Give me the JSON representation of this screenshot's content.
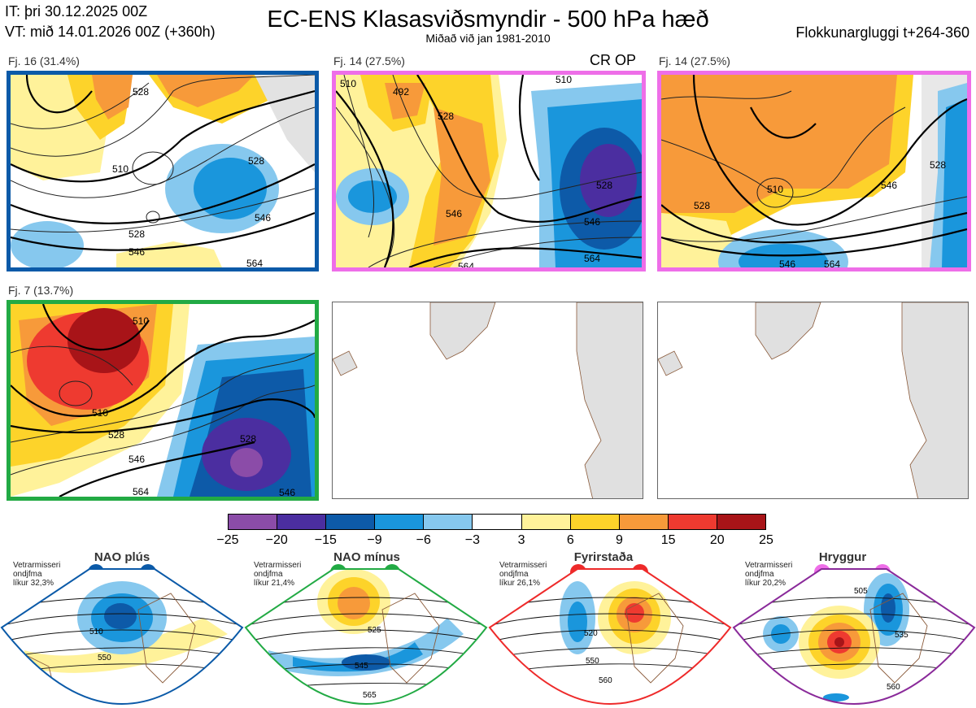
{
  "header": {
    "it": "IT: þri 30.12.2025 00Z",
    "vt": "VT: mið 14.01.2026 00Z  (+360h)",
    "title": "EC-ENS Klasasviðsmyndir - 500 hPa hæð",
    "subtitle": "Miðað við jan 1981-2010",
    "window": "Flokkunargluggi t+264-360"
  },
  "panels": [
    {
      "label": "Fj. 16 (31.4%)",
      "border_color": "#0b5aa8",
      "contour_labels": [
        "528",
        "510",
        "528",
        "546",
        "528",
        "546",
        "564"
      ]
    },
    {
      "label": "Fj. 14 (27.5%)",
      "border_color": "#ee6ee8",
      "extra": "CR OP",
      "contour_labels": [
        "492",
        "510",
        "528",
        "546",
        "564",
        "510",
        "528",
        "546",
        "564"
      ]
    },
    {
      "label": "Fj. 14 (27.5%)",
      "border_color": "#ee6ee8",
      "contour_labels": [
        "510",
        "528",
        "546",
        "528",
        "546",
        "564"
      ]
    },
    {
      "label": "Fj. 7 (13.7%)",
      "border_color": "#22aa44",
      "contour_labels": [
        "510",
        "510",
        "528",
        "546",
        "564",
        "528",
        "546"
      ]
    },
    {
      "label": "",
      "border_color": "",
      "contour_labels": []
    },
    {
      "label": "",
      "border_color": "",
      "contour_labels": []
    }
  ],
  "colorbar": {
    "ticks": [
      "−25",
      "−20",
      "−15",
      "−9",
      "−6",
      "−3",
      "3",
      "6",
      "9",
      "15",
      "20",
      "25"
    ],
    "colors": [
      "#8b4ca8",
      "#4b2ea0",
      "#0d5aa8",
      "#1a96dc",
      "#86c8ee",
      "#ffffff",
      "#fff29a",
      "#fdd32a",
      "#f79a3a",
      "#ee3a30",
      "#a81418"
    ]
  },
  "regimes": [
    {
      "title": "NAO plús",
      "note": [
        "Vetrarmisseri",
        "ondjfma",
        "líkur 32,3%"
      ],
      "color": "#0b5aa8",
      "contour_labels": [
        "510",
        "550"
      ]
    },
    {
      "title": "NAO mínus",
      "note": [
        "Vetrarmisseri",
        "ondjfma",
        "líkur 21,4%"
      ],
      "color": "#22aa44",
      "contour_labels": [
        "525",
        "545",
        "565"
      ]
    },
    {
      "title": "Fyrirstaða",
      "note": [
        "Vetrarmisseri",
        "ondjfma",
        "líkur 26,1%"
      ],
      "color": "#ee2a2a",
      "contour_labels": [
        "520",
        "550",
        "560"
      ]
    },
    {
      "title": "Hryggur",
      "note": [
        "Vetrarmisseri",
        "ondjfma",
        "líkur 20,2%"
      ],
      "color": "#ee6ee8",
      "contour_labels": [
        "505",
        "535",
        "560"
      ]
    }
  ]
}
